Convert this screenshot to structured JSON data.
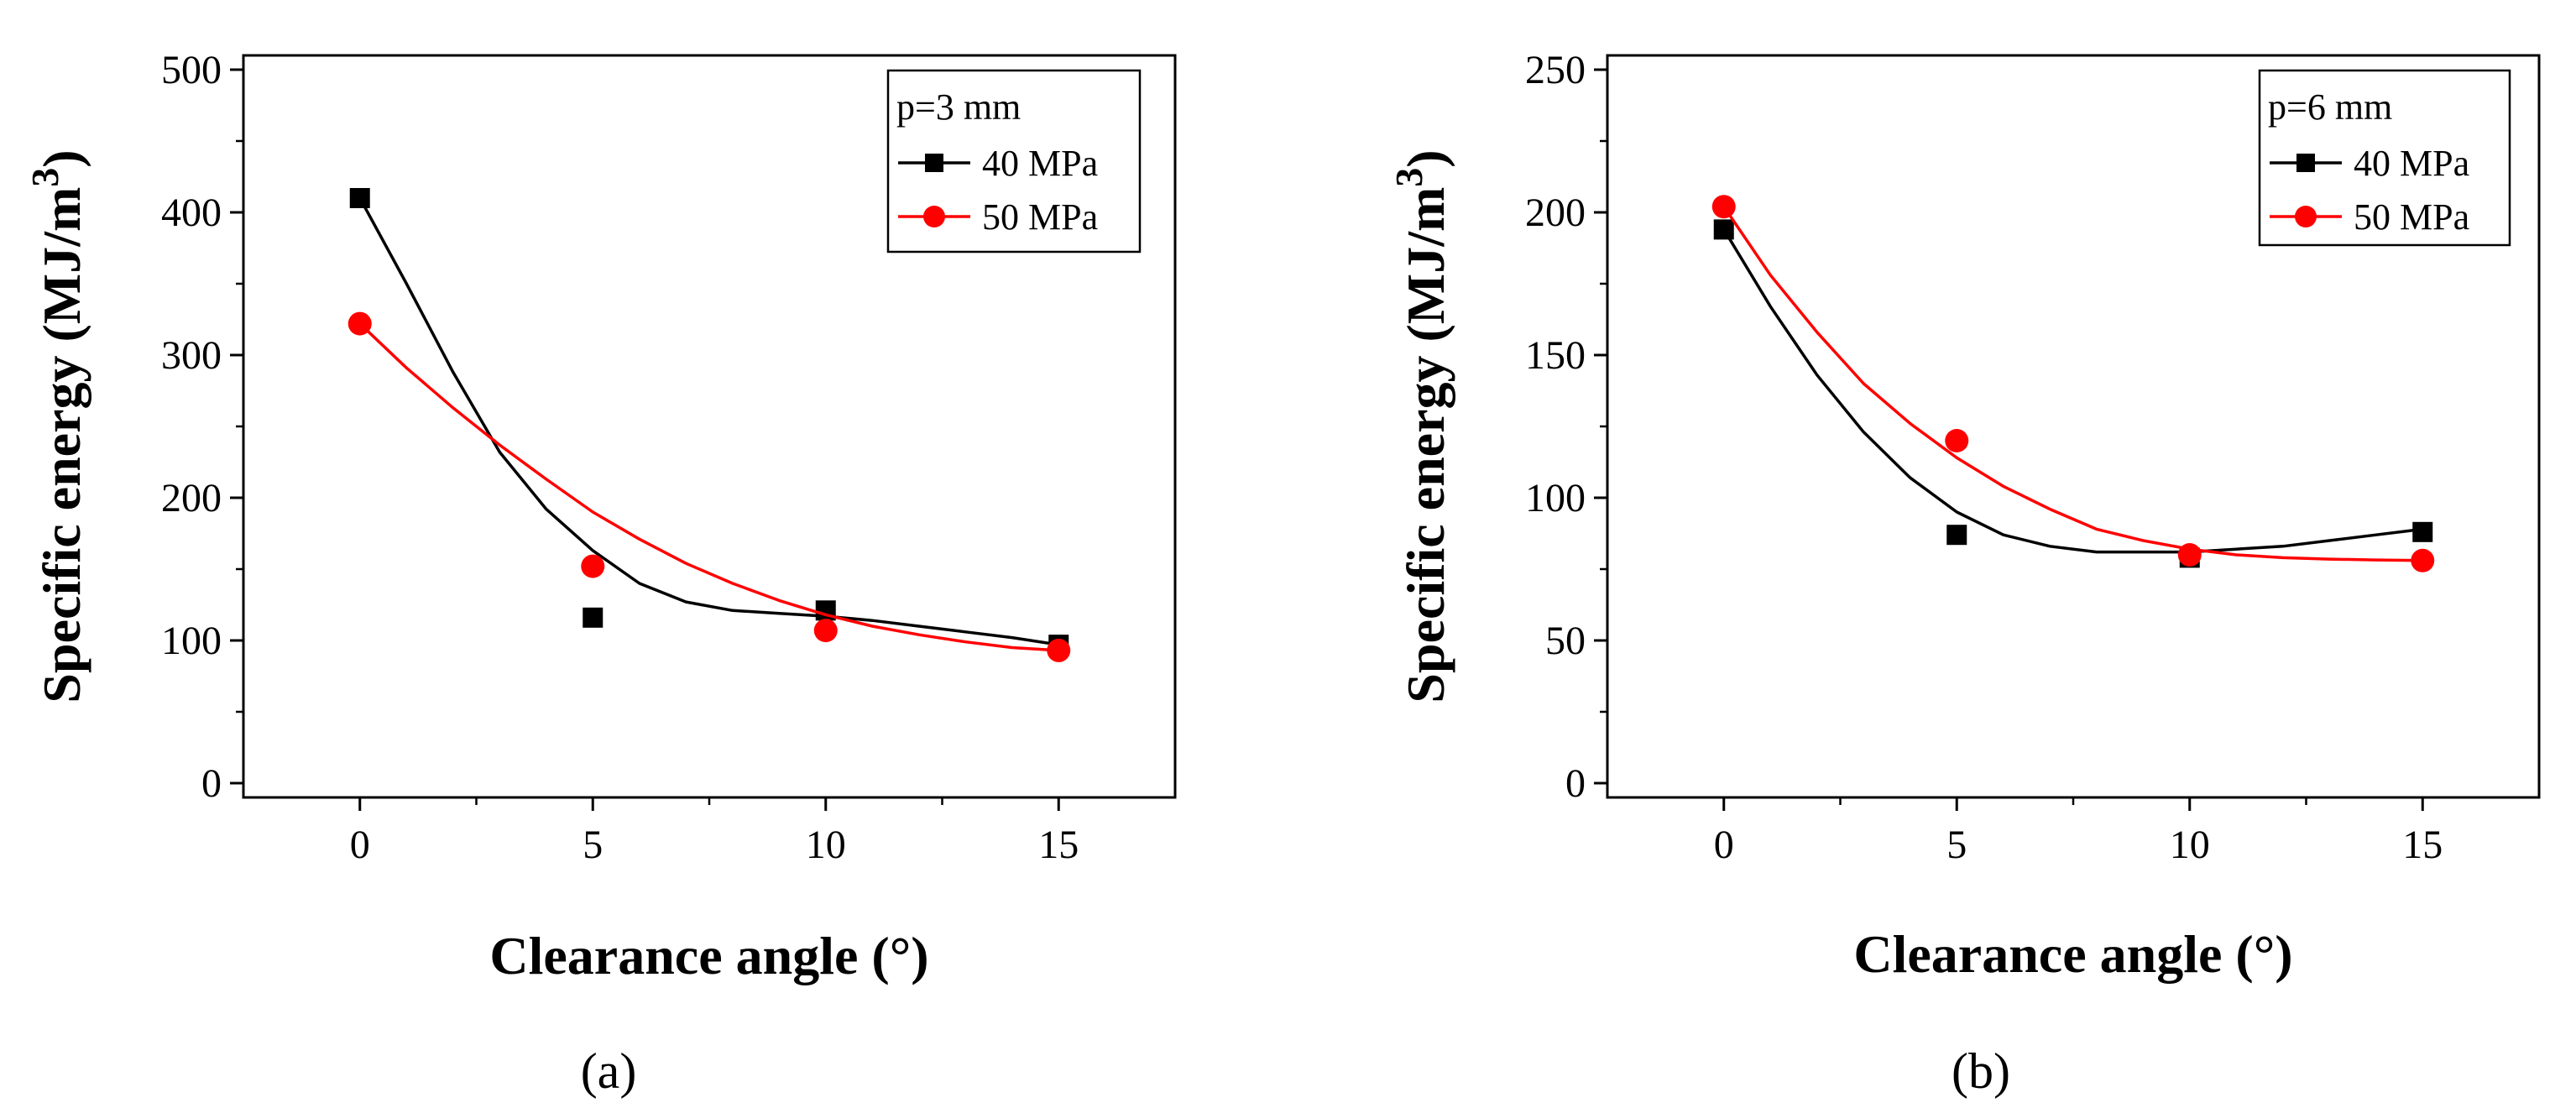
{
  "chart_data": [
    {
      "type": "scatter",
      "panel_label": "(a)",
      "xlabel": "Clearance angle (°)",
      "ylabel_main": "Specific energy (MJ/m",
      "ylabel_sup": "3",
      "ylabel_close": ")",
      "xlim": [
        -2.5,
        17.5
      ],
      "ylim": [
        -10,
        510
      ],
      "xticks": [
        0,
        5,
        10,
        15
      ],
      "yticks": [
        0,
        100,
        200,
        300,
        400,
        500
      ],
      "legend_title": "p=3 mm",
      "legend_position": "top-right",
      "series": [
        {
          "name": "40 MPa",
          "color": "#000000",
          "marker": "square",
          "x": [
            0,
            5,
            10,
            15
          ],
          "y": [
            410,
            116,
            121,
            97
          ],
          "curve": [
            [
              0,
              410
            ],
            [
              1,
              350
            ],
            [
              2,
              288
            ],
            [
              3,
              232
            ],
            [
              4,
              192
            ],
            [
              5,
              163
            ],
            [
              6,
              140
            ],
            [
              7,
              127
            ],
            [
              8,
              121
            ],
            [
              9,
              119
            ],
            [
              10,
              117
            ],
            [
              11,
              114
            ],
            [
              12,
              110
            ],
            [
              13,
              106
            ],
            [
              14,
              102
            ],
            [
              15,
              97
            ]
          ]
        },
        {
          "name": "50 MPa",
          "color": "#ff0000",
          "marker": "circle",
          "x": [
            0,
            5,
            10,
            15
          ],
          "y": [
            322,
            152,
            107,
            93
          ],
          "curve": [
            [
              0,
              322
            ],
            [
              1,
              291
            ],
            [
              2,
              263
            ],
            [
              3,
              237
            ],
            [
              4,
              213
            ],
            [
              5,
              190
            ],
            [
              6,
              171
            ],
            [
              7,
              154
            ],
            [
              8,
              140
            ],
            [
              9,
              128
            ],
            [
              10,
              118
            ],
            [
              11,
              110
            ],
            [
              12,
              104
            ],
            [
              13,
              99
            ],
            [
              14,
              95
            ],
            [
              15,
              93
            ]
          ]
        }
      ]
    },
    {
      "type": "scatter",
      "panel_label": "(b)",
      "xlabel": "Clearance angle (°)",
      "ylabel_main": "Specific energy (MJ/m",
      "ylabel_sup": "3",
      "ylabel_close": ")",
      "xlim": [
        -2.5,
        17.5
      ],
      "ylim": [
        -5,
        255
      ],
      "xticks": [
        0,
        5,
        10,
        15
      ],
      "yticks": [
        0,
        50,
        100,
        150,
        200,
        250
      ],
      "legend_title": "p=6 mm",
      "legend_position": "top-right",
      "series": [
        {
          "name": "40 MPa",
          "color": "#000000",
          "marker": "square",
          "x": [
            0,
            5,
            10,
            15
          ],
          "y": [
            194,
            87,
            79,
            88
          ],
          "curve": [
            [
              0,
              194
            ],
            [
              1,
              167
            ],
            [
              2,
              143
            ],
            [
              3,
              123
            ],
            [
              4,
              107
            ],
            [
              5,
              95
            ],
            [
              6,
              87
            ],
            [
              7,
              83
            ],
            [
              8,
              81
            ],
            [
              9,
              81
            ],
            [
              10,
              81
            ],
            [
              11,
              82
            ],
            [
              12,
              83
            ],
            [
              13,
              85
            ],
            [
              14,
              87
            ],
            [
              15,
              89
            ]
          ]
        },
        {
          "name": "50 MPa",
          "color": "#ff0000",
          "marker": "circle",
          "x": [
            0,
            5,
            10,
            15
          ],
          "y": [
            202,
            120,
            80,
            78
          ],
          "curve": [
            [
              0,
              202
            ],
            [
              1,
              178
            ],
            [
              2,
              158
            ],
            [
              3,
              140
            ],
            [
              4,
              126
            ],
            [
              5,
              114
            ],
            [
              6,
              104
            ],
            [
              7,
              96
            ],
            [
              8,
              89
            ],
            [
              9,
              85
            ],
            [
              10,
              82
            ],
            [
              11,
              80
            ],
            [
              12,
              79
            ],
            [
              13,
              78.5
            ],
            [
              14,
              78.2
            ],
            [
              15,
              78
            ]
          ]
        }
      ]
    }
  ]
}
